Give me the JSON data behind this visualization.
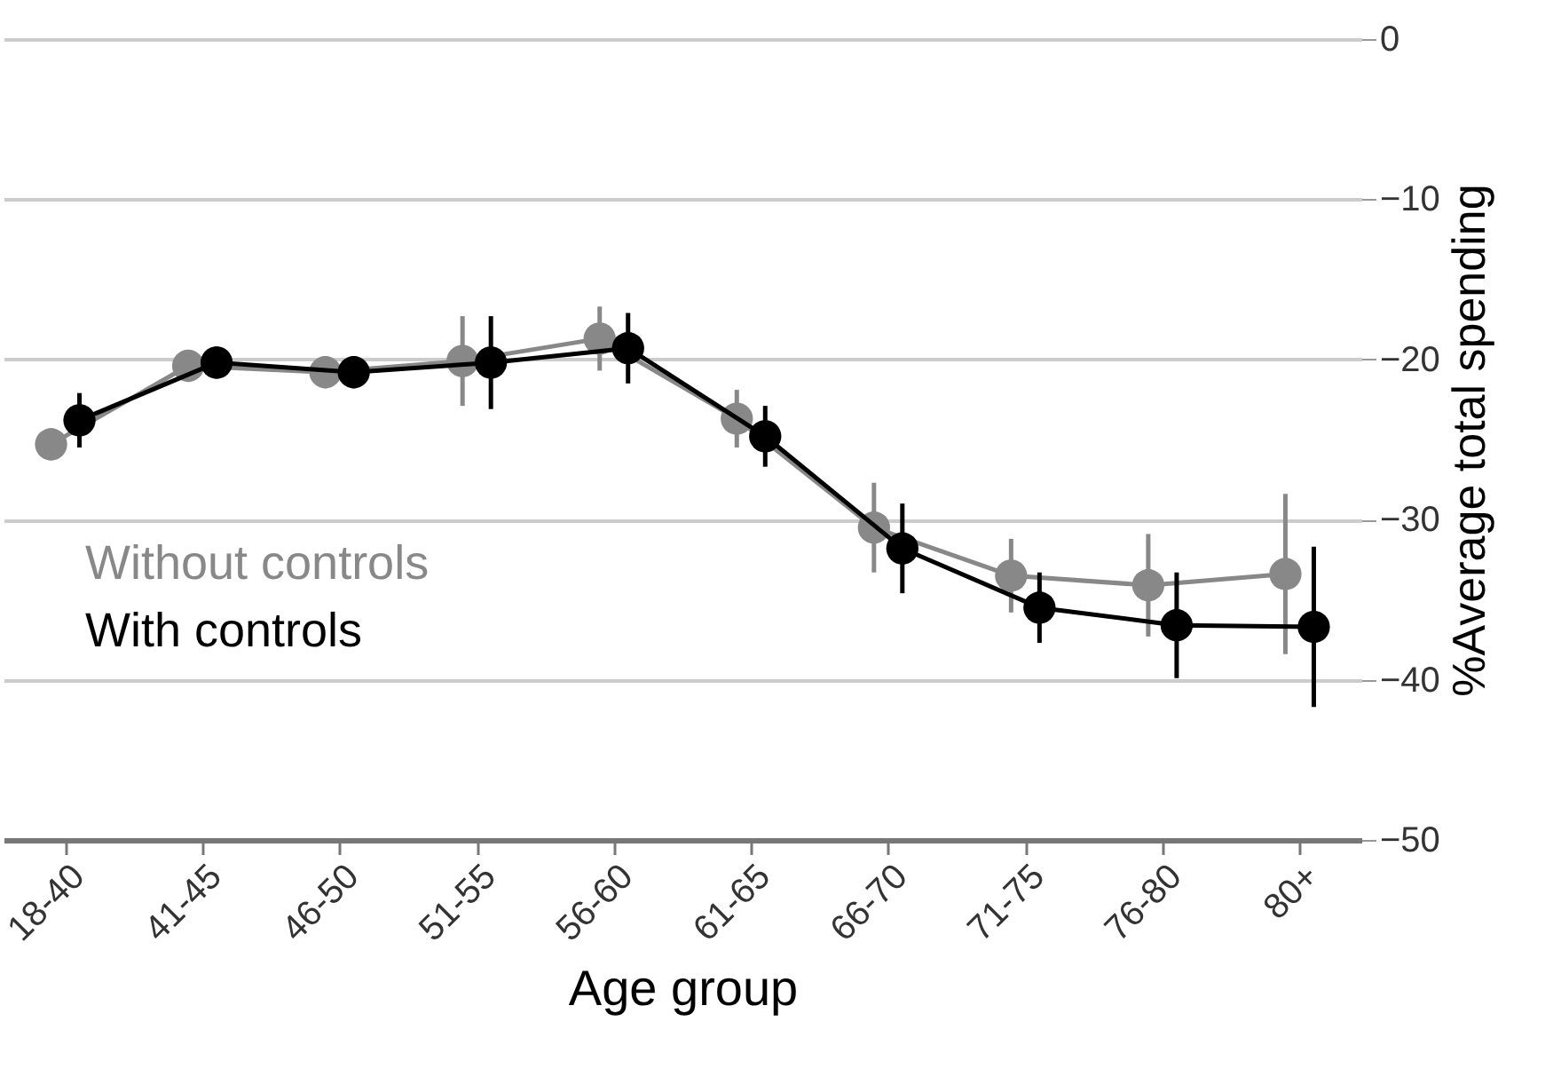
{
  "chart_data": {
    "type": "line",
    "xlabel": "Age group",
    "ylabel": "%Average total spending",
    "categories": [
      "18-40",
      "41-45",
      "46-50",
      "51-55",
      "56-60",
      "61-65",
      "66-70",
      "71-75",
      "76-80",
      "80+"
    ],
    "series": [
      {
        "name": "Without controls",
        "color": "#888888",
        "values": [
          -25.3,
          -20.4,
          -20.8,
          -20.1,
          -18.7,
          -23.7,
          -30.5,
          -33.5,
          -34.1,
          -33.4
        ],
        "errors": [
          1,
          1,
          1,
          2.8,
          2,
          1.8,
          2.8,
          2.3,
          3.2,
          5
        ]
      },
      {
        "name": "With controls",
        "color": "#000000",
        "values": [
          -23.8,
          -20.2,
          -20.8,
          -20.2,
          -19.3,
          -24.8,
          -31.8,
          -35.5,
          -36.6,
          -36.7
        ],
        "errors": [
          1.7,
          1,
          1,
          2.9,
          2.2,
          1.9,
          2.8,
          2.2,
          3.3,
          5
        ]
      }
    ],
    "ylim": [
      -50,
      0
    ],
    "yticks": [
      -50,
      -40,
      -30,
      -20,
      -10,
      0
    ],
    "grid": "y",
    "legend": "left",
    "marker": "circle",
    "line_style": "solid"
  }
}
